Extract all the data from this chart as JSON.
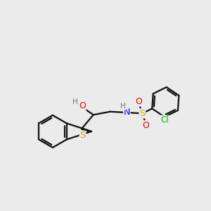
{
  "background_color": "#ebebeb",
  "atom_colors": {
    "H": "#607080",
    "N": "#0000ee",
    "O": "#ee0000",
    "S_sulfonamide": "#ddaa00",
    "S_thio": "#ccaa00",
    "Cl": "#00bb00"
  },
  "bond_color": "#111111",
  "bond_width": 1.6,
  "font_size": 8.5,
  "fig_size": [
    3.0,
    3.0
  ],
  "dpi": 100
}
